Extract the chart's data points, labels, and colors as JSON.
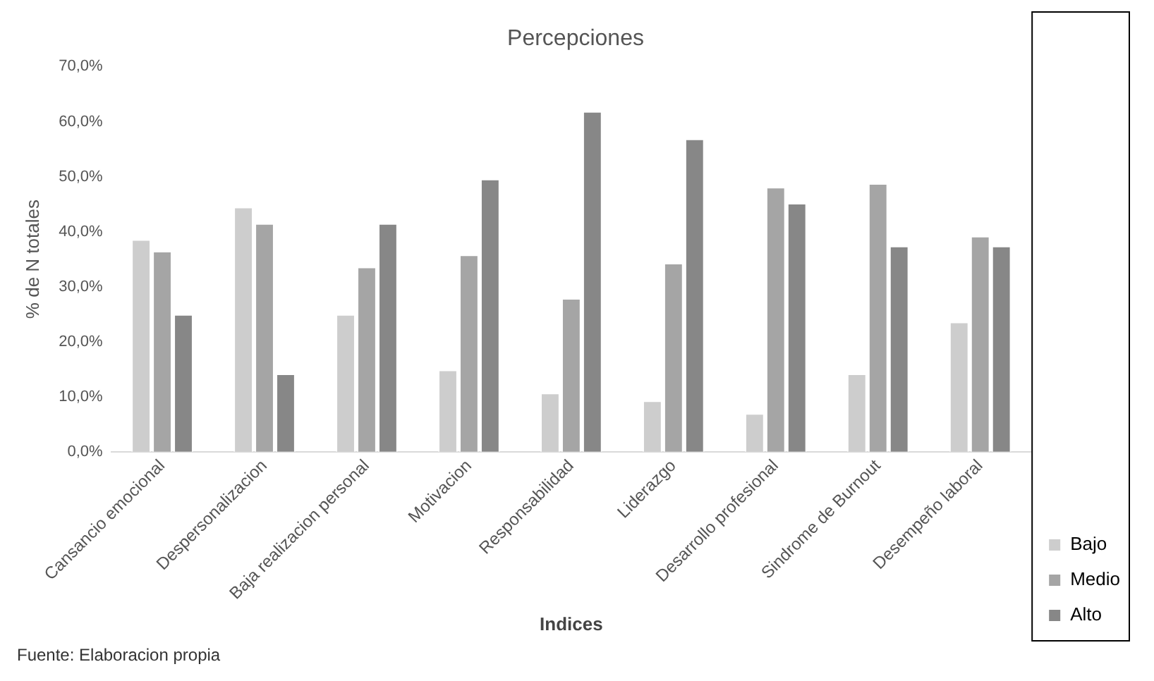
{
  "chart_data": {
    "type": "bar",
    "title": "Percepciones",
    "xlabel": "Indices",
    "ylabel": "% de N totales",
    "categories": [
      "Cansancio emocional",
      "Despersonalizacion",
      "Baja realizacion personal",
      "Motivacion",
      "Responsabilidad",
      "Liderazgo",
      "Desarrollo profesional",
      "Sindrome de Burnout",
      "Desempeño laboral"
    ],
    "series": [
      {
        "name": "Bajo",
        "color": "#cdcdcd",
        "values": [
          38.6,
          44.5,
          25.0,
          14.9,
          10.7,
          9.3,
          7.0,
          14.2,
          23.6
        ]
      },
      {
        "name": "Medio",
        "color": "#a5a5a5",
        "values": [
          36.5,
          41.5,
          33.6,
          35.8,
          27.9,
          34.3,
          48.1,
          48.8,
          39.2
        ]
      },
      {
        "name": "Alto",
        "color": "#878787",
        "values": [
          25.0,
          14.2,
          41.5,
          49.6,
          61.9,
          56.9,
          45.2,
          37.4,
          37.4
        ]
      }
    ],
    "ylim": [
      0,
      70
    ],
    "yticks": [
      {
        "value": 0,
        "label": "0,0%"
      },
      {
        "value": 10,
        "label": "10,0%"
      },
      {
        "value": 20,
        "label": "20,0%"
      },
      {
        "value": 30,
        "label": "30,0%"
      },
      {
        "value": 40,
        "label": "40,0%"
      },
      {
        "value": 50,
        "label": "50,0%"
      },
      {
        "value": 60,
        "label": "60,0%"
      },
      {
        "value": 70,
        "label": "70,0%"
      }
    ],
    "grid": false,
    "legend": "bottom right",
    "annotations": [
      "Fuente: Elaboracion propia"
    ]
  }
}
